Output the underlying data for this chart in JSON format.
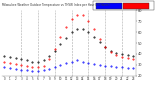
{
  "hours": [
    0,
    1,
    2,
    3,
    4,
    5,
    6,
    7,
    8,
    9,
    10,
    11,
    12,
    13,
    14,
    15,
    16,
    17,
    18,
    19,
    20,
    21,
    22,
    23
  ],
  "outdoor_temp": [
    38,
    37,
    36,
    35,
    34,
    33,
    33,
    34,
    38,
    43,
    49,
    55,
    60,
    63,
    63,
    60,
    56,
    51,
    46,
    43,
    41,
    40,
    39,
    38
  ],
  "thsw_index": [
    33,
    32,
    31,
    30,
    29,
    28,
    28,
    29,
    35,
    45,
    56,
    65,
    72,
    76,
    76,
    70,
    63,
    54,
    46,
    42,
    39,
    37,
    36,
    35
  ],
  "dew_point": [
    28,
    27,
    26,
    25,
    25,
    24,
    24,
    25,
    26,
    28,
    30,
    32,
    33,
    34,
    33,
    32,
    31,
    30,
    29,
    29,
    28,
    28,
    27,
    27
  ],
  "temp_color": "#000000",
  "thsw_color": "#ff0000",
  "dew_color": "#0000ff",
  "background_color": "#ffffff",
  "grid_color": "#aaaaaa",
  "ylim": [
    20,
    80
  ],
  "ytick_vals": [
    20,
    30,
    40,
    50,
    60,
    70,
    80
  ],
  "ytick_labels": [
    "20",
    "30",
    "40",
    "50",
    "60",
    "70",
    "80"
  ],
  "grid_hours": [
    3,
    6,
    9,
    12,
    15,
    18,
    21
  ],
  "legend_blue_color": "#0000ff",
  "legend_red_color": "#ff0000"
}
